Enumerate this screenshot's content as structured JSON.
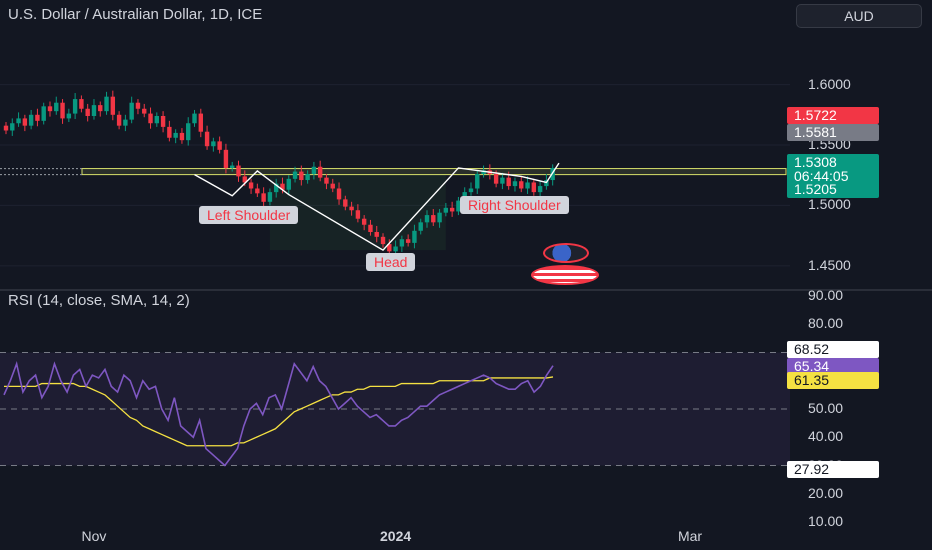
{
  "header": {
    "title": "U.S. Dollar / Australian Dollar, 1D, ICE",
    "currency_button": "AUD"
  },
  "chart_data": [
    {
      "type": "candlestick",
      "title": "U.S. Dollar / Australian Dollar, 1D, ICE",
      "ylim": [
        1.43,
        1.67
      ],
      "price_ticks": [
        "1.6000",
        "1.5500",
        "1.5000",
        "1.4500"
      ],
      "x_ticks": [
        "Nov",
        "2024",
        "Mar"
      ],
      "closes": [
        1.562,
        1.568,
        1.572,
        1.566,
        1.575,
        1.57,
        1.582,
        1.578,
        1.585,
        1.572,
        1.576,
        1.588,
        1.58,
        1.574,
        1.583,
        1.578,
        1.59,
        1.575,
        1.566,
        1.571,
        1.585,
        1.58,
        1.576,
        1.568,
        1.574,
        1.565,
        1.556,
        1.56,
        1.554,
        1.568,
        1.576,
        1.561,
        1.549,
        1.553,
        1.546,
        1.531,
        1.533,
        1.524,
        1.519,
        1.514,
        1.51,
        1.503,
        1.511,
        1.518,
        1.513,
        1.522,
        1.528,
        1.521,
        1.526,
        1.532,
        1.523,
        1.518,
        1.514,
        1.505,
        1.499,
        1.496,
        1.489,
        1.484,
        1.478,
        1.474,
        1.468,
        1.462,
        1.466,
        1.472,
        1.469,
        1.479,
        1.486,
        1.492,
        1.486,
        1.494,
        1.498,
        1.495,
        1.504,
        1.511,
        1.514,
        1.526,
        1.529,
        1.526,
        1.518,
        1.523,
        1.516,
        1.52,
        1.514,
        1.519,
        1.511,
        1.516,
        1.521,
        1.531
      ],
      "neckline": [
        1.5255,
        1.5305
      ],
      "current_price": "1.5308",
      "countdown": "06:44:05",
      "price_labels": [
        "1.5722",
        "1.5581",
        "1.5308",
        "1.5205"
      ],
      "annotations": [
        "Left Shoulder",
        "Head",
        "Right Shoulder"
      ]
    },
    {
      "type": "line",
      "title": "RSI (14, close, SMA, 14, 2)",
      "ylim": [
        10,
        90
      ],
      "y_ticks": [
        "90.00",
        "80.00",
        "70.00",
        "60.00",
        "50.00",
        "40.00",
        "30.00",
        "20.00",
        "10.00"
      ],
      "bands": [
        70,
        50,
        30
      ],
      "series": [
        {
          "name": "RSI",
          "values": [
            55,
            60,
            66,
            56,
            60,
            62,
            54,
            58,
            66,
            60,
            56,
            62,
            64,
            58,
            62,
            61,
            64,
            58,
            56,
            62,
            60,
            54,
            60,
            57,
            58,
            50,
            46,
            54,
            44,
            42,
            40,
            46,
            36,
            34,
            32,
            30,
            33,
            36,
            44,
            50,
            52,
            48,
            54,
            55,
            50,
            58,
            66,
            63,
            60,
            65,
            60,
            58,
            54,
            50,
            52,
            54,
            51,
            49,
            47,
            48,
            46,
            44,
            44,
            46,
            47,
            49,
            51,
            51,
            53,
            55,
            56,
            57,
            58,
            59,
            60,
            61,
            62,
            61,
            59,
            58,
            57,
            57,
            59,
            60,
            56,
            58,
            62,
            65.34
          ]
        },
        {
          "name": "SMA",
          "values": [
            58,
            58,
            58,
            58,
            58,
            58,
            59,
            59,
            59,
            59,
            59,
            59,
            58,
            58,
            57,
            56,
            55,
            53,
            51,
            49,
            47,
            46,
            44,
            43,
            42,
            41,
            40,
            39,
            38,
            37,
            37,
            37,
            37,
            37,
            37,
            37,
            37,
            38,
            38,
            39,
            40,
            41,
            42,
            43,
            45,
            47,
            49,
            50,
            51,
            52,
            53,
            54,
            55,
            55,
            56,
            56,
            57,
            57,
            58,
            58,
            58,
            58,
            58,
            59,
            59,
            59,
            59,
            59,
            59,
            60,
            60,
            60,
            60,
            60,
            60,
            60,
            60,
            61,
            61,
            61,
            61,
            61,
            61,
            61,
            61,
            61,
            61,
            61.35
          ]
        }
      ],
      "value_labels": [
        "68.52",
        "65.34",
        "61.35",
        "27.92"
      ]
    }
  ],
  "colors": {
    "background": "#131722",
    "up": "#089981",
    "down": "#f23645",
    "rsi": "#7e57c2",
    "sma": "#f5e142",
    "neckline": "#d6e06a"
  }
}
